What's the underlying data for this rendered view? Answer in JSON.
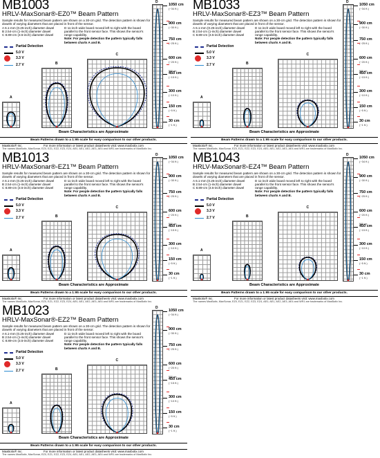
{
  "common": {
    "description_main": "Sample results for measured beam pattern are shown on a 30-cm grid. The detection pattern is shown for dowels of varying diameters that are placed in front of the sensor.",
    "dowel_a": "A 6.1-mm (0.25-inch) diameter dowel",
    "dowel_b": "B 2.54-cm (1-inch) diameter dowel",
    "dowel_c": "C 8.89-cm (3.5-inch) diameter dowel",
    "dowel_d": "D 11-inch wide board moved left to right with the board parallel to the front sensor face. This shows the sensor's range capability.",
    "note": "Note: For people detection the pattern typically falls between charts A and B.",
    "legend": {
      "partial": "Partial Detection",
      "v50": "5.0 V",
      "v33": "3.3 V",
      "v27": "2.7 V"
    },
    "grid_labels": [
      "A",
      "B",
      "C",
      "D"
    ],
    "scale": [
      {
        "cm": "1050 cm",
        "ft": "(~34 ft.)"
      },
      {
        "cm": "900 cm",
        "ft": "(~30 ft.)"
      },
      {
        "cm": "750 cm",
        "ft": "(~25 ft.)"
      },
      {
        "cm": "600 cm",
        "ft": "(~20 ft.)"
      },
      {
        "cm": "450 cm",
        "ft": "(~15 ft.)"
      },
      {
        "cm": "300 cm",
        "ft": "(~10 ft.)"
      },
      {
        "cm": "150 cm",
        "ft": "(~5 ft.)"
      },
      {
        "cm": "30 cm",
        "ft": "(~1 ft.)"
      }
    ],
    "small_500": "500 cm",
    "characteristics": "Beam Characteristics are Approximate",
    "scale_note": "Beam Patterns drawn to a 1:95 scale for easy comparison to our other products.",
    "company": "MaxBotix® Inc.",
    "more_info": "For more information or latest product datasheets visit: www.maxbotix.com",
    "trademarks": "The names MaxBotix, MaxSonar, EZ0, EZ1, EZ2, EZ3, EZ4, AE0, AE1, AE2, AE3, AE4 and WR1 are trademarks of MaxBotix Inc."
  },
  "panels": [
    {
      "model": "MB1003",
      "subtitle": "HRLV-MaxSonar®-EZ0™ Beam Pattern",
      "beam": {
        "a": [
          0.55,
          0.3
        ],
        "b": [
          0.72,
          0.45
        ],
        "c": [
          0.85,
          0.6
        ]
      }
    },
    {
      "model": "MB1033",
      "subtitle": "HRLV-MaxSonar®-EZ3™ Beam Pattern",
      "beam": {
        "a": [
          0.25,
          0.12
        ],
        "b": [
          0.3,
          0.15
        ],
        "c": [
          0.38,
          0.22
        ]
      }
    },
    {
      "model": "MB1013",
      "subtitle": "HRLV-MaxSonar®-EZ1™ Beam Pattern",
      "beam": {
        "a": [
          0.45,
          0.22
        ],
        "b": [
          0.55,
          0.35
        ],
        "c": [
          0.65,
          0.45
        ]
      }
    },
    {
      "model": "MB1043",
      "subtitle": "HRLV-MaxSonar®-EZ4™ Beam Pattern",
      "beam": {
        "a": [
          0.2,
          0.1
        ],
        "b": [
          0.25,
          0.12
        ],
        "c": [
          0.32,
          0.18
        ]
      }
    },
    {
      "model": "MB1023",
      "subtitle": "HRLV-MaxSonar®-EZ2™ Beam Pattern",
      "beam": {
        "a": [
          0.3,
          0.18
        ],
        "b": [
          0.45,
          0.25
        ],
        "c": [
          0.55,
          0.32
        ]
      }
    }
  ]
}
